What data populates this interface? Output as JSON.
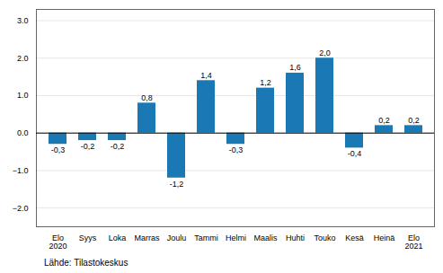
{
  "chart_data": {
    "type": "bar",
    "categories": [
      "Elo\n2020",
      "Syys",
      "Loka",
      "Marras",
      "Joulu",
      "Tammi",
      "Helmi",
      "Maalis",
      "Huhti",
      "Touko",
      "Kesä",
      "Heinä",
      "Elo\n2021"
    ],
    "values": [
      -0.3,
      -0.2,
      -0.2,
      0.8,
      -1.2,
      1.4,
      -0.3,
      1.2,
      1.6,
      2.0,
      -0.4,
      0.2,
      0.2
    ],
    "value_labels": [
      "-0,3",
      "-0,2",
      "-0,2",
      "0,8",
      "-1,2",
      "1,4",
      "-0,3",
      "1,2",
      "1,6",
      "2,0",
      "-0,4",
      "0,2",
      "0,2"
    ],
    "data_labels": true,
    "color": "#1a78b4",
    "ylim": [
      -2.5,
      3.3
    ],
    "yticks": [
      -2,
      -1,
      0,
      1,
      2,
      3
    ],
    "grid": true,
    "annotations": [
      "Lähde: Tilastokeskus"
    ]
  }
}
